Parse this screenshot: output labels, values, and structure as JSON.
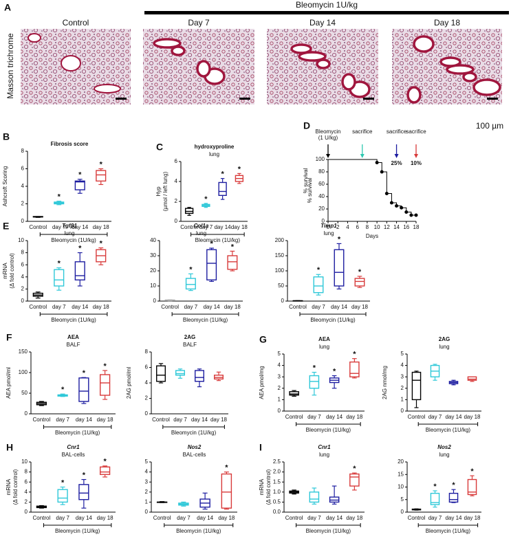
{
  "panel_a": {
    "panel": "A",
    "treatment": "Bleomycin 1U/kg",
    "stain": "Masson trichrome",
    "scale_bar": "100 µm",
    "images": [
      "Control",
      "Day 7",
      "Day 14",
      "Day 18"
    ]
  },
  "chart_data": [
    {
      "type": "box",
      "panel": "B",
      "title": [
        "Fibrosis score"
      ],
      "ylabel": [
        "Ashcroft Scoring"
      ],
      "categories": [
        "Control",
        "day 7",
        "day 14",
        "day 18"
      ],
      "colors": [
        "#000000",
        "#2ec8d8",
        "#1c1ca0",
        "#d83a3a"
      ],
      "group_label": "Bleomycin (1U/kg)",
      "annotation": "*",
      "starred": [
        false,
        true,
        true,
        true
      ],
      "ylim": [
        0,
        8
      ],
      "yticks": [
        0,
        2,
        4,
        6,
        8
      ],
      "boxes": [
        {
          "min": 0.45,
          "q1": 0.5,
          "median": 0.5,
          "q3": 0.55,
          "max": 0.55
        },
        {
          "min": 1.9,
          "q1": 2.0,
          "median": 2.1,
          "q3": 2.2,
          "max": 2.3
        },
        {
          "min": 3.2,
          "q1": 3.6,
          "median": 4.5,
          "q3": 4.6,
          "max": 4.8
        },
        {
          "min": 4.2,
          "q1": 4.6,
          "median": 5.3,
          "q3": 5.8,
          "max": 6.0
        }
      ]
    },
    {
      "type": "box",
      "panel": "C",
      "title": [
        "hydroxyproline",
        "lung"
      ],
      "ylabel": [
        "Hyp",
        "(µmol / left lung)"
      ],
      "categories": [
        "Control",
        "day 7",
        "day 14",
        "day 18"
      ],
      "colors": [
        "#000000",
        "#2ec8d8",
        "#1c1ca0",
        "#d83a3a"
      ],
      "group_label": "Bleomycin (1U/kg)",
      "annotation": "*",
      "starred": [
        false,
        true,
        true,
        true
      ],
      "ylim": [
        0,
        6
      ],
      "yticks": [
        0,
        2,
        4,
        6
      ],
      "boxes": [
        {
          "min": 0.6,
          "q1": 0.8,
          "median": 1.0,
          "q3": 1.3,
          "max": 1.4
        },
        {
          "min": 1.4,
          "q1": 1.5,
          "median": 1.6,
          "q3": 1.7,
          "max": 1.8
        },
        {
          "min": 2.2,
          "q1": 2.6,
          "median": 3.0,
          "q3": 3.9,
          "max": 4.3
        },
        {
          "min": 3.8,
          "q1": 4.0,
          "median": 4.3,
          "q3": 4.6,
          "max": 4.8
        }
      ]
    },
    {
      "type": "survival",
      "panel": "D",
      "xlabel": "Days",
      "ylabel": "% survival",
      "color": "#000000",
      "x": [
        0,
        10,
        11,
        12,
        13,
        14,
        15,
        16,
        17,
        18
      ],
      "values": [
        100,
        95,
        80,
        45,
        30,
        25,
        22,
        15,
        10,
        10
      ],
      "xlim": [
        0,
        18
      ],
      "xticks": [
        0,
        2,
        4,
        6,
        8,
        10,
        12,
        14,
        16,
        18
      ],
      "ylim": [
        0,
        100
      ],
      "yticks": [
        0,
        20,
        40,
        60,
        80,
        100
      ],
      "events": [
        {
          "x": 0,
          "label": [
            "Bleomycin",
            "(1 U/kg)"
          ],
          "color": "#000000"
        },
        {
          "x": 7,
          "label": [
            "sacrifice"
          ],
          "color": "#2ec8b0"
        },
        {
          "x": 14,
          "label": [
            "sacrifice",
            "25%"
          ],
          "color": "#1c1ca0"
        },
        {
          "x": 18,
          "label": [
            "sacrifice",
            "10%"
          ],
          "color": "#d83a3a"
        }
      ]
    },
    {
      "type": "box",
      "panel": "E",
      "title": [
        "Tgfβ1",
        "lung"
      ],
      "ylabel": [
        "mRNA",
        "(Δ fold control)"
      ],
      "categories": [
        "Control",
        "day 7",
        "day 14",
        "day 18"
      ],
      "colors": [
        "#000000",
        "#2ec8d8",
        "#1c1ca0",
        "#d83a3a"
      ],
      "group_label": "Bleomycin (1U/kg)",
      "annotation": "*",
      "starred": [
        false,
        true,
        true,
        true
      ],
      "ylim": [
        0,
        10
      ],
      "yticks": [
        0,
        2,
        4,
        6,
        8,
        10
      ],
      "boxes": [
        {
          "min": 0.5,
          "q1": 0.8,
          "median": 1.0,
          "q3": 1.3,
          "max": 1.5
        },
        {
          "min": 1.8,
          "q1": 2.5,
          "median": 3.5,
          "q3": 5.2,
          "max": 5.5
        },
        {
          "min": 2.5,
          "q1": 3.5,
          "median": 4.2,
          "q3": 6.5,
          "max": 8.0
        },
        {
          "min": 6.0,
          "q1": 6.5,
          "median": 7.5,
          "q3": 8.5,
          "max": 8.8
        }
      ]
    },
    {
      "type": "box",
      "title": [
        "Col1a",
        "lung"
      ],
      "categories": [
        "Control",
        "day 7",
        "day 14",
        "day 18"
      ],
      "colors": [
        "#aaaaaa",
        "#2ec8d8",
        "#1c1ca0",
        "#d83a3a"
      ],
      "group_label": "Bleomycin (1U/kg)",
      "annotation": "*",
      "starred": [
        false,
        true,
        true,
        true
      ],
      "ylim": [
        0,
        40
      ],
      "yticks": [
        0,
        10,
        20,
        30,
        40
      ],
      "boxes": [
        {
          "min": 0.2,
          "q1": 0.4,
          "median": 0.5,
          "q3": 0.7,
          "max": 0.8
        },
        {
          "min": 7,
          "q1": 8,
          "median": 11,
          "q3": 15,
          "max": 18
        },
        {
          "min": 13,
          "q1": 14,
          "median": 25,
          "q3": 34,
          "max": 35
        },
        {
          "min": 20,
          "q1": 21,
          "median": 26,
          "q3": 30,
          "max": 33
        }
      ]
    },
    {
      "type": "box",
      "title": [
        "Timp1",
        "lung"
      ],
      "categories": [
        "Control",
        "day 7",
        "day 14",
        "day 18"
      ],
      "colors": [
        "#000000",
        "#2ec8d8",
        "#1c1ca0",
        "#d83a3a"
      ],
      "group_label": "Bleomycin (1U/kg)",
      "annotation": "*",
      "starred": [
        false,
        true,
        true,
        true
      ],
      "ylim": [
        0,
        200
      ],
      "yticks": [
        0,
        50,
        100,
        150,
        200
      ],
      "boxes": [
        {
          "min": 0.5,
          "q1": 0.7,
          "median": 1,
          "q3": 1.2,
          "max": 1.5
        },
        {
          "min": 20,
          "q1": 28,
          "median": 50,
          "q3": 80,
          "max": 88
        },
        {
          "min": 40,
          "q1": 50,
          "median": 95,
          "q3": 170,
          "max": 190
        },
        {
          "min": 45,
          "q1": 50,
          "median": 65,
          "q3": 75,
          "max": 82
        }
      ]
    },
    {
      "type": "box",
      "panel": "F",
      "title": [
        "AEA",
        "BALF"
      ],
      "ylabel": [
        "AEA pmol/ml"
      ],
      "categories": [
        "Control",
        "day 7",
        "day 14",
        "day 18"
      ],
      "colors": [
        "#000000",
        "#2ec8d8",
        "#1c1ca0",
        "#d83a3a"
      ],
      "group_label": "Bleomycin (1U/kg)",
      "annotation": "*",
      "starred": [
        false,
        true,
        true,
        true
      ],
      "ylim": [
        0,
        150
      ],
      "yticks": [
        0,
        50,
        100,
        150
      ],
      "boxes": [
        {
          "min": 20,
          "q1": 22,
          "median": 25,
          "q3": 28,
          "max": 30
        },
        {
          "min": 42,
          "q1": 43,
          "median": 44,
          "q3": 46,
          "max": 48
        },
        {
          "min": 25,
          "q1": 30,
          "median": 55,
          "q3": 87,
          "max": 88
        },
        {
          "min": 35,
          "q1": 45,
          "median": 75,
          "q3": 95,
          "max": 105
        }
      ]
    },
    {
      "type": "box",
      "title": [
        "2AG",
        "BALF"
      ],
      "ylabel": [
        "2AG pmol/ml"
      ],
      "categories": [
        "Control",
        "day 7",
        "day 14",
        "day 18"
      ],
      "colors": [
        "#000000",
        "#2ec8d8",
        "#1c1ca0",
        "#d83a3a"
      ],
      "group_label": "Bleomycin (1U/kg)",
      "ylim": [
        0,
        8
      ],
      "yticks": [
        0,
        2,
        4,
        6,
        8
      ],
      "boxes": [
        {
          "min": 4.0,
          "q1": 4.2,
          "median": 5.0,
          "q3": 6.2,
          "max": 6.5
        },
        {
          "min": 4.6,
          "q1": 5.0,
          "median": 5.2,
          "q3": 5.6,
          "max": 5.8
        },
        {
          "min": 3.5,
          "q1": 4.2,
          "median": 4.7,
          "q3": 5.6,
          "max": 5.8
        },
        {
          "min": 4.3,
          "q1": 4.5,
          "median": 4.7,
          "q3": 5.0,
          "max": 5.4
        }
      ]
    },
    {
      "type": "box",
      "panel": "G",
      "title": [
        "AEA",
        "lung"
      ],
      "ylabel": [
        "AEA pmol/mg"
      ],
      "categories": [
        "Control",
        "day 7",
        "day 14",
        "day 18"
      ],
      "colors": [
        "#000000",
        "#2ec8d8",
        "#1c1ca0",
        "#d83a3a"
      ],
      "group_label": "Bleomycin (1U/kg)",
      "annotation": "*",
      "starred": [
        false,
        true,
        true,
        true
      ],
      "ylim": [
        0,
        5
      ],
      "yticks": [
        0,
        1,
        2,
        3,
        4,
        5
      ],
      "boxes": [
        {
          "min": 1.3,
          "q1": 1.4,
          "median": 1.5,
          "q3": 1.7,
          "max": 1.8
        },
        {
          "min": 1.4,
          "q1": 2.0,
          "median": 2.6,
          "q3": 3.1,
          "max": 3.4
        },
        {
          "min": 2.0,
          "q1": 2.5,
          "median": 2.7,
          "q3": 2.9,
          "max": 3.1
        },
        {
          "min": 2.9,
          "q1": 3.0,
          "median": 3.3,
          "q3": 4.3,
          "max": 4.6
        }
      ]
    },
    {
      "type": "box",
      "title": [
        "2AG",
        "lung"
      ],
      "ylabel": [
        "2AG nmol/mg"
      ],
      "categories": [
        "Control",
        "day 7",
        "day 14",
        "day 18"
      ],
      "colors": [
        "#000000",
        "#2ec8d8",
        "#1c1ca0",
        "#d83a3a"
      ],
      "group_label": "Bleomycin (1U/kg)",
      "ylim": [
        0,
        5
      ],
      "yticks": [
        0,
        1,
        2,
        3,
        4,
        5
      ],
      "boxes": [
        {
          "min": 0.3,
          "q1": 1.0,
          "median": 2.7,
          "q3": 3.4,
          "max": 3.5
        },
        {
          "min": 2.7,
          "q1": 3.0,
          "median": 3.5,
          "q3": 4.0,
          "max": 4.1
        },
        {
          "min": 2.3,
          "q1": 2.4,
          "median": 2.5,
          "q3": 2.6,
          "max": 2.7
        },
        {
          "min": 2.6,
          "q1": 2.7,
          "median": 2.8,
          "q3": 3.0,
          "max": 3.0
        }
      ]
    },
    {
      "type": "box",
      "panel": "H",
      "title": [
        "Cnr1",
        "BAL-cells"
      ],
      "ylabel": [
        "mRNA",
        "(Δ fold control)"
      ],
      "categories": [
        "Control",
        "day 7",
        "day 14",
        "day 18"
      ],
      "colors": [
        "#000000",
        "#2ec8d8",
        "#1c1ca0",
        "#d83a3a"
      ],
      "group_label": "Bleomycin (1U/kg)",
      "annotation": "*",
      "starred": [
        false,
        true,
        true,
        true
      ],
      "ylim": [
        0,
        10
      ],
      "yticks": [
        0,
        2,
        4,
        6,
        8,
        10
      ],
      "boxes": [
        {
          "min": 0.8,
          "q1": 0.9,
          "median": 1.0,
          "q3": 1.2,
          "max": 1.3
        },
        {
          "min": 1.5,
          "q1": 2.0,
          "median": 2.8,
          "q3": 4.5,
          "max": 5.0
        },
        {
          "min": 0.8,
          "q1": 2.5,
          "median": 3.8,
          "q3": 5.5,
          "max": 6.5
        },
        {
          "min": 7.0,
          "q1": 7.5,
          "median": 8.0,
          "q3": 9.0,
          "max": 9.2
        }
      ]
    },
    {
      "type": "box",
      "title": [
        "Nos2",
        "BAL-cells"
      ],
      "categories": [
        "Control",
        "day 7",
        "day 14",
        "day 18"
      ],
      "colors": [
        "#000000",
        "#2ec8d8",
        "#1c1ca0",
        "#d83a3a"
      ],
      "group_label": "Bleomycin (1U/kg)",
      "annotation": "*",
      "starred": [
        false,
        false,
        false,
        true
      ],
      "ylim": [
        0,
        5
      ],
      "yticks": [
        0,
        1,
        2,
        3,
        4,
        5
      ],
      "boxes": [
        {
          "min": 0.95,
          "q1": 1.0,
          "median": 1.0,
          "q3": 1.0,
          "max": 1.05
        },
        {
          "min": 0.6,
          "q1": 0.7,
          "median": 0.8,
          "q3": 0.9,
          "max": 1.0
        },
        {
          "min": 0.3,
          "q1": 0.5,
          "median": 0.9,
          "q3": 1.3,
          "max": 1.9
        },
        {
          "min": 0.3,
          "q1": 0.4,
          "median": 2.0,
          "q3": 3.8,
          "max": 4.0
        }
      ]
    },
    {
      "type": "box",
      "panel": "I",
      "title": [
        "Cnr1",
        "lung"
      ],
      "ylabel": [
        "mRNA",
        "(Δ fold control)"
      ],
      "categories": [
        "Control",
        "day 7",
        "day 14",
        "day 18"
      ],
      "colors": [
        "#000000",
        "#2ec8d8",
        "#1c1ca0",
        "#d83a3a"
      ],
      "group_label": "Bleomycin (1U/kg)",
      "annotation": "*",
      "starred": [
        false,
        false,
        false,
        true
      ],
      "ylim": [
        0,
        2.5
      ],
      "yticks": [
        {
          "value": 0,
          "label": "0.0"
        },
        0.5,
        {
          "value": 1,
          "label": "1.0"
        },
        1.5,
        {
          "value": 2,
          "label": "2.0"
        },
        2.5
      ],
      "boxes": [
        {
          "min": 0.9,
          "q1": 0.95,
          "median": 1.0,
          "q3": 1.05,
          "max": 1.1
        },
        {
          "min": 0.4,
          "q1": 0.5,
          "median": 0.65,
          "q3": 1.0,
          "max": 1.2
        },
        {
          "min": 0.4,
          "q1": 0.5,
          "median": 0.6,
          "q3": 0.75,
          "max": 1.3
        },
        {
          "min": 1.1,
          "q1": 1.3,
          "median": 1.75,
          "q3": 1.9,
          "max": 1.95
        }
      ]
    },
    {
      "type": "box",
      "title": [
        "Nos2",
        "lung"
      ],
      "categories": [
        "Control",
        "day 7",
        "day 14",
        "day 18"
      ],
      "colors": [
        "#000000",
        "#2ec8d8",
        "#1c1ca0",
        "#d83a3a"
      ],
      "group_label": "Bleomycin (1U/kg)",
      "annotation": "*",
      "starred": [
        false,
        true,
        true,
        true
      ],
      "ylim": [
        0,
        20
      ],
      "yticks": [
        0,
        5,
        10,
        15,
        20
      ],
      "boxes": [
        {
          "min": 0.8,
          "q1": 0.9,
          "median": 1.0,
          "q3": 1.2,
          "max": 1.3
        },
        {
          "min": 2.0,
          "q1": 3.0,
          "median": 3.8,
          "q3": 7.5,
          "max": 8.5
        },
        {
          "min": 3.8,
          "q1": 4.0,
          "median": 5.0,
          "q3": 7.5,
          "max": 9.0
        },
        {
          "min": 6.5,
          "q1": 7.0,
          "median": 8.0,
          "q3": 13.0,
          "max": 14.5
        }
      ]
    }
  ]
}
